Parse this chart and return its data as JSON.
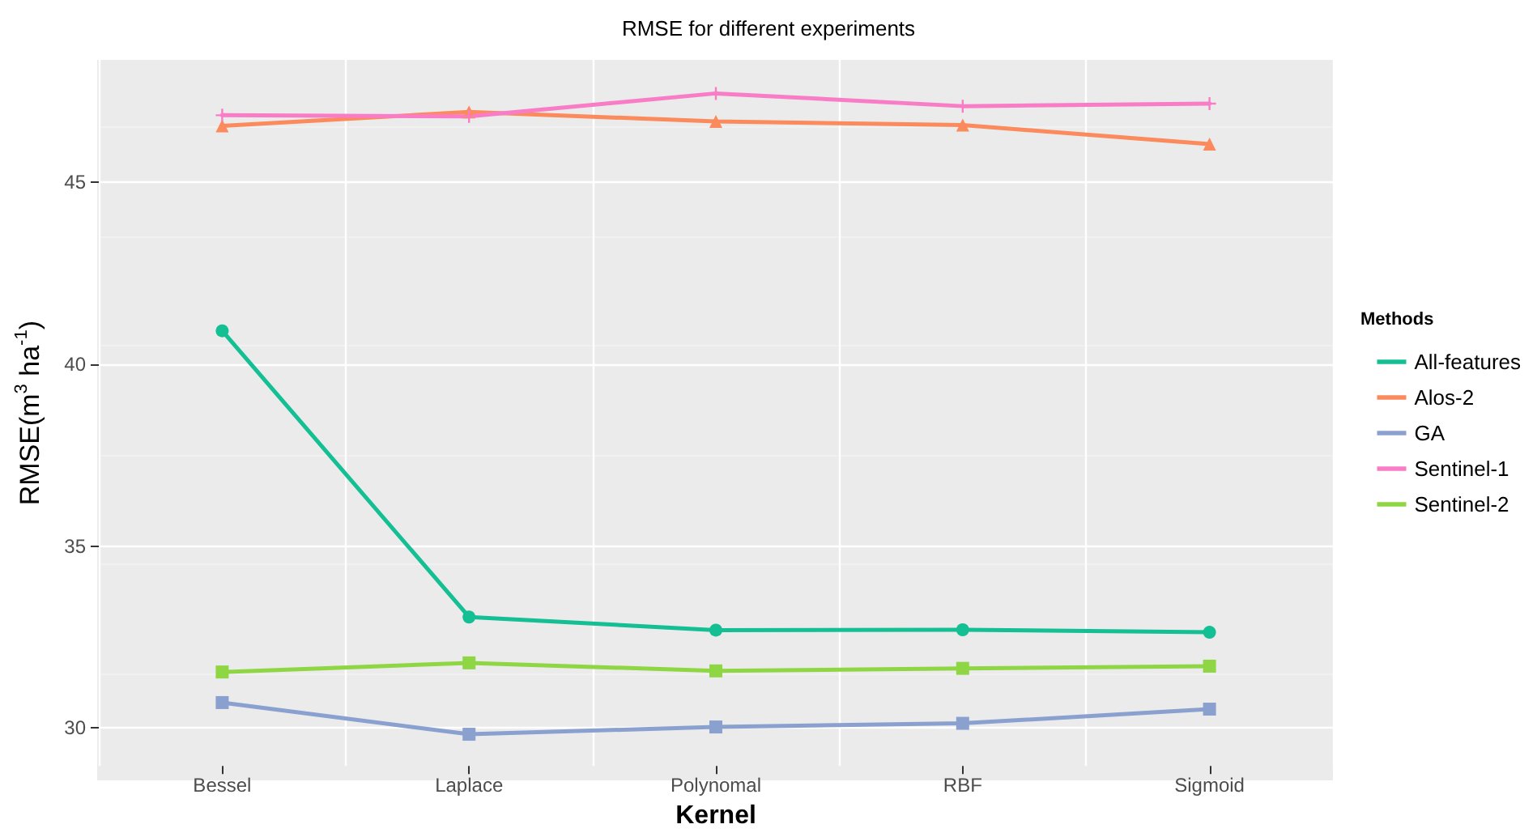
{
  "chart_data": {
    "type": "line",
    "title": "RMSE for different experiments",
    "xlabel": "Kernel",
    "ylabel": "RMSE(m$^{3}$ ha$^{-1}$)",
    "legend_title": "Methods",
    "categories": [
      "Bessel",
      "Laplace",
      "Polynomal",
      "RBF",
      "Sigmoid"
    ],
    "series": [
      {
        "name": "All-features",
        "color": "#13bf93",
        "marker": "circle",
        "values": [
          40.91,
          33.05,
          32.69,
          32.7,
          32.63
        ]
      },
      {
        "name": "Alos-2",
        "color": "#fb8a5c",
        "marker": "triangle",
        "values": [
          46.54,
          46.92,
          46.66,
          46.56,
          46.04
        ]
      },
      {
        "name": "GA",
        "color": "#8aa0cf",
        "marker": "square",
        "values": [
          30.7,
          29.83,
          30.03,
          30.13,
          30.52
        ]
      },
      {
        "name": "Sentinel-1",
        "color": "#f97dc6",
        "marker": "cross",
        "values": [
          46.83,
          46.8,
          47.43,
          47.08,
          47.15
        ]
      },
      {
        "name": "Sentinel-2",
        "color": "#8ed643",
        "marker": "square",
        "values": [
          31.54,
          31.79,
          31.57,
          31.64,
          31.7
        ]
      }
    ],
    "ylim": [
      28.96,
      48.35
    ],
    "yticks": [
      30,
      35,
      40,
      45
    ],
    "grid": true,
    "legend": "right",
    "line_style": "solid"
  }
}
